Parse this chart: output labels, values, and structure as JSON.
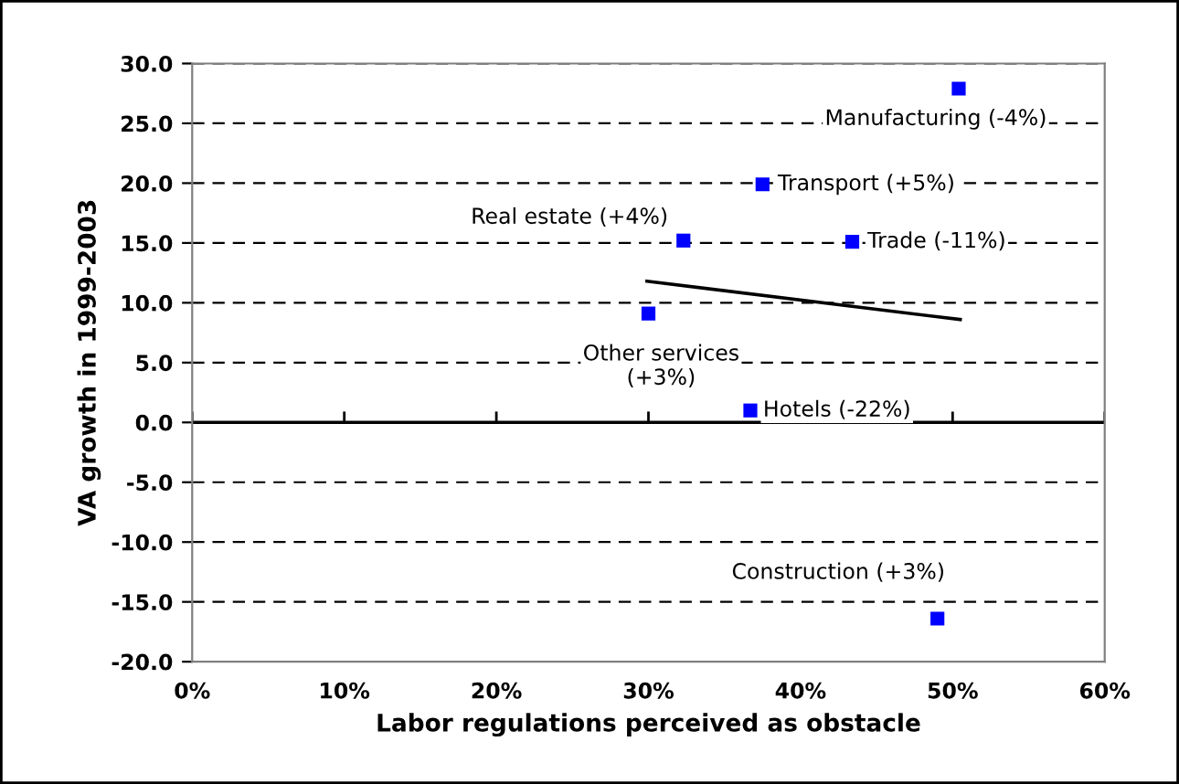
{
  "chart_data": {
    "type": "scatter",
    "xlabel": "Labor regulations perceived as obstacle",
    "ylabel": "VA growth in 1999-2003",
    "series": [
      {
        "color": "#0000ff",
        "marker": "square",
        "x": [
          50.4,
          37.5,
          32.3,
          43.4,
          30.0,
          36.7,
          49.0
        ],
        "values": [
          27.9,
          19.9,
          15.2,
          15.1,
          9.1,
          1.0,
          -16.4
        ]
      },
      {
        "type": "line",
        "color": "#000000",
        "marker": "none",
        "line_style": "solid",
        "x": [
          29.9,
          50.5
        ],
        "values": [
          11.8,
          8.6
        ]
      }
    ],
    "annotations": [
      {
        "text": "Manufacturing (-4%)",
        "x": 50.4,
        "y": 27.9
      },
      {
        "text": "Transport (+5%)",
        "x": 37.5,
        "y": 19.9
      },
      {
        "text": "Real estate (+4%)",
        "x": 32.3,
        "y": 15.2
      },
      {
        "text": "Trade (-11%)",
        "x": 43.4,
        "y": 15.1
      },
      {
        "text": "Other services\n(+3%)",
        "x": 30.0,
        "y": 9.1
      },
      {
        "text": "Hotels (-22%)",
        "x": 36.7,
        "y": 1.0
      },
      {
        "text": "Construction (+3%)",
        "x": 49.0,
        "y": -16.4
      }
    ],
    "xlim": [
      0,
      60
    ],
    "ylim": [
      -20,
      30
    ],
    "xticks": [
      {
        "value": 0,
        "label": "0%"
      },
      {
        "value": 10,
        "label": "10%"
      },
      {
        "value": 20,
        "label": "20%"
      },
      {
        "value": 30,
        "label": "30%"
      },
      {
        "value": 40,
        "label": "40%"
      },
      {
        "value": 50,
        "label": "50%"
      },
      {
        "value": 60,
        "label": "60%"
      }
    ],
    "yticks": [
      {
        "value": -20,
        "label": "-20.0"
      },
      {
        "value": -15,
        "label": "-15.0"
      },
      {
        "value": -10,
        "label": "-10.0"
      },
      {
        "value": -5,
        "label": "-5.0"
      },
      {
        "value": 0,
        "label": "0.0"
      },
      {
        "value": 5,
        "label": "5.0"
      },
      {
        "value": 10,
        "label": "10.0"
      },
      {
        "value": 15,
        "label": "15.0"
      },
      {
        "value": 20,
        "label": "20.0"
      },
      {
        "value": 25,
        "label": "25.0"
      },
      {
        "value": 30,
        "label": "30.0"
      }
    ],
    "grid": "y",
    "legend": false,
    "ref_lines": [
      {
        "axis": "y",
        "value": 0,
        "color": "#000000",
        "line_style": "solid"
      }
    ]
  }
}
